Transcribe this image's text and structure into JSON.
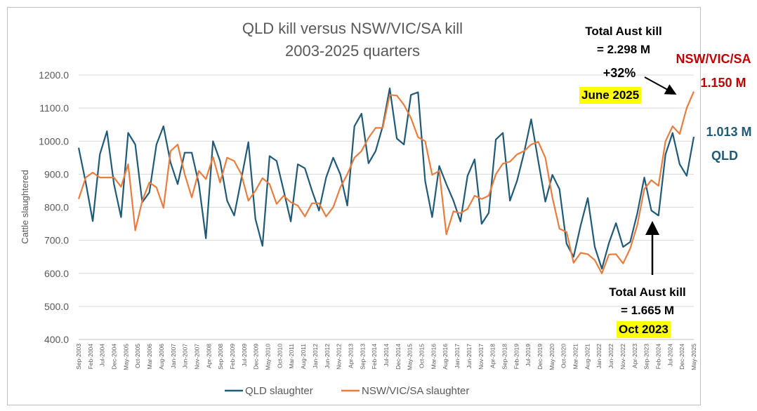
{
  "chart_data": {
    "type": "line",
    "title_line1": "QLD kill versus NSW/VIC/SA kill",
    "title_line2": "2003-2025 quarters",
    "ylabel": "Cattle slaughtered",
    "ylim": [
      400,
      1200
    ],
    "yticks": [
      "400.0",
      "500.0",
      "600.0",
      "700.0",
      "800.0",
      "900.0",
      "1000.0",
      "1100.0",
      "1200.0"
    ],
    "grid": true,
    "legend": "bottom",
    "x_tick_labels": [
      "Sep-2003",
      "Feb-2004",
      "Jul-2004",
      "Dec-2004",
      "May-2005",
      "Oct-2005",
      "Mar-2006",
      "Aug-2006",
      "Jan-2007",
      "Jun-2007",
      "Nov-2007",
      "Apr-2008",
      "Sep-2008",
      "Feb-2009",
      "Jul-2009",
      "Dec-2009",
      "May-2010",
      "Oct-2010",
      "Mar-2011",
      "Aug-2011",
      "Jan-2012",
      "Jun-2012",
      "Nov-2012",
      "Apr-2013",
      "Sep-2013",
      "Feb-2014",
      "Jul-2014",
      "Dec-2014",
      "May-2015",
      "Oct-2015",
      "Mar-2016",
      "Aug-2016",
      "Jan-2017",
      "Jun-2017",
      "Nov-2017",
      "Apr-2018",
      "Sep-2018",
      "Feb-2019",
      "Jul-2019",
      "Dec-2019",
      "May-2020",
      "Oct-2020",
      "Mar-2021",
      "Aug-2021",
      "Jan-2022",
      "Jun-2022",
      "Nov-2022",
      "Apr-2023",
      "Sep-2023",
      "Feb-2024",
      "Jul-2024",
      "Dec-2024",
      "May-2025"
    ],
    "series": [
      {
        "name": "QLD slaughter",
        "color": "#1f5a78",
        "values": [
          980,
          875,
          758,
          960,
          1030,
          870,
          770,
          1025,
          990,
          815,
          845,
          990,
          1045,
          935,
          870,
          965,
          965,
          870,
          706,
          1000,
          940,
          820,
          775,
          885,
          997,
          765,
          683,
          955,
          940,
          850,
          757,
          930,
          918,
          850,
          790,
          890,
          950,
          900,
          805,
          1045,
          1083,
          933,
          970,
          1045,
          1160,
          1008,
          990,
          1140,
          1148,
          880,
          770,
          925,
          870,
          820,
          757,
          895,
          945,
          750,
          783,
          1005,
          1025,
          820,
          880,
          965,
          1066,
          940,
          817,
          898,
          855,
          690,
          650,
          745,
          828,
          680,
          614,
          692,
          752,
          680,
          695,
          780,
          890,
          790,
          775,
          960,
          1025,
          930,
          895,
          1013
        ]
      },
      {
        "name": "NSW/VIC/SA slaughter",
        "color": "#e87d3e",
        "values": [
          825,
          890,
          905,
          890,
          890,
          890,
          862,
          930,
          730,
          820,
          875,
          860,
          798,
          970,
          990,
          900,
          830,
          910,
          885,
          952,
          875,
          950,
          940,
          900,
          820,
          850,
          888,
          870,
          810,
          835,
          815,
          805,
          772,
          812,
          812,
          772,
          800,
          860,
          900,
          950,
          970,
          1010,
          1040,
          1040,
          1140,
          1138,
          1110,
          1070,
          1012,
          1000,
          898,
          910,
          718,
          788,
          782,
          795,
          835,
          825,
          835,
          900,
          932,
          938,
          960,
          970,
          990,
          998,
          950,
          830,
          735,
          725,
          632,
          662,
          658,
          640,
          600,
          657,
          658,
          630,
          675,
          745,
          855,
          882,
          865,
          1000,
          1045,
          1022,
          1100,
          1150
        ]
      }
    ],
    "annotations": {
      "top_line1": "Total Aust kill",
      "top_line2": "= 2.298 M",
      "top_pct": "+32%",
      "top_date": "June 2025",
      "right_region": "NSW/VIC/SA",
      "right_region_value": "1.150 M",
      "qld_value": "1.013 M",
      "qld_label": "QLD",
      "bottom_line1": "Total Aust kill",
      "bottom_line2": "= 1.665 M",
      "bottom_date": "Oct 2023"
    },
    "colors": {
      "nsw_annotation": "#c00000",
      "qld_annotation": "#1f5a78",
      "highlight": "#ffff00"
    }
  }
}
